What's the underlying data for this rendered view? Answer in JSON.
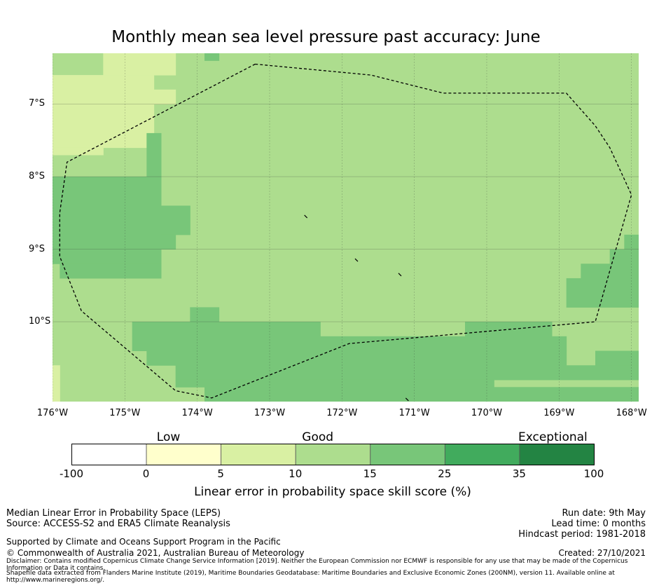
{
  "title": "Monthly mean sea level pressure past accuracy: June",
  "map": {
    "lon_range": [
      -176,
      -167.9
    ],
    "lat_range": [
      -11.1,
      -6.3
    ],
    "lat_ticks": [
      {
        "value": -7,
        "label": "7°S"
      },
      {
        "value": -8,
        "label": "8°S"
      },
      {
        "value": -9,
        "label": "9°S"
      },
      {
        "value": -10,
        "label": "10°S"
      }
    ],
    "lon_ticks": [
      {
        "value": -176,
        "label": "176°W"
      },
      {
        "value": -175,
        "label": "175°W"
      },
      {
        "value": -174,
        "label": "174°W"
      },
      {
        "value": -173,
        "label": "173°W"
      },
      {
        "value": -172,
        "label": "172°W"
      },
      {
        "value": -171,
        "label": "171°W"
      },
      {
        "value": -170,
        "label": "170°W"
      },
      {
        "value": -169,
        "label": "169°W"
      },
      {
        "value": -168,
        "label": "168°W"
      }
    ],
    "base_category": "10-15",
    "regions": [
      {
        "cat": "5-10",
        "lon": [
          -176.0,
          -174.6
        ],
        "lat": [
          -6.6,
          -7.6
        ]
      },
      {
        "cat": "5-10",
        "lon": [
          -174.6,
          -174.3
        ],
        "lat": [
          -6.8,
          -7.0
        ]
      },
      {
        "cat": "5-10",
        "lon": [
          -175.3,
          -174.3
        ],
        "lat": [
          -6.3,
          -6.6
        ]
      },
      {
        "cat": "5-10",
        "lon": [
          -176.0,
          -175.3
        ],
        "lat": [
          -7.6,
          -7.7
        ]
      },
      {
        "cat": "15-25",
        "lon": [
          -173.9,
          -173.7
        ],
        "lat": [
          -6.3,
          -6.4
        ]
      },
      {
        "cat": "15-25",
        "lon": [
          -174.7,
          -174.5
        ],
        "lat": [
          -7.4,
          -8.0
        ]
      },
      {
        "cat": "15-25",
        "lon": [
          -176.0,
          -174.5
        ],
        "lat": [
          -8.0,
          -9.2
        ]
      },
      {
        "cat": "15-25",
        "lon": [
          -174.5,
          -174.1
        ],
        "lat": [
          -8.4,
          -8.8
        ]
      },
      {
        "cat": "15-25",
        "lon": [
          -174.5,
          -174.3
        ],
        "lat": [
          -8.8,
          -9.0
        ]
      },
      {
        "cat": "15-25",
        "lon": [
          -175.9,
          -174.5
        ],
        "lat": [
          -9.2,
          -9.4
        ]
      },
      {
        "cat": "15-25",
        "lon": [
          -174.1,
          -173.7
        ],
        "lat": [
          -9.8,
          -10.0
        ]
      },
      {
        "cat": "15-25",
        "lon": [
          -174.9,
          -172.3
        ],
        "lat": [
          -10.0,
          -10.2
        ]
      },
      {
        "cat": "15-25",
        "lon": [
          -170.3,
          -169.1
        ],
        "lat": [
          -10.0,
          -10.2
        ]
      },
      {
        "cat": "15-25",
        "lon": [
          -174.9,
          -168.9
        ],
        "lat": [
          -10.2,
          -10.4
        ]
      },
      {
        "cat": "15-25",
        "lon": [
          -174.7,
          -168.9
        ],
        "lat": [
          -10.4,
          -10.6
        ]
      },
      {
        "cat": "15-25",
        "lon": [
          -174.3,
          -167.9
        ],
        "lat": [
          -10.6,
          -10.8
        ]
      },
      {
        "cat": "15-25",
        "lon": [
          -174.3,
          -169.9
        ],
        "lat": [
          -10.8,
          -10.9
        ]
      },
      {
        "cat": "15-25",
        "lon": [
          -173.9,
          -167.9
        ],
        "lat": [
          -10.9,
          -11.1
        ]
      },
      {
        "cat": "15-25",
        "lon": [
          -168.5,
          -167.9
        ],
        "lat": [
          -10.4,
          -10.6
        ]
      },
      {
        "cat": "15-25",
        "lon": [
          -168.9,
          -167.9
        ],
        "lat": [
          -9.4,
          -9.8
        ]
      },
      {
        "cat": "15-25",
        "lon": [
          -168.7,
          -167.9
        ],
        "lat": [
          -9.2,
          -9.4
        ]
      },
      {
        "cat": "15-25",
        "lon": [
          -168.3,
          -167.9
        ],
        "lat": [
          -9.0,
          -9.2
        ]
      },
      {
        "cat": "15-25",
        "lon": [
          -168.1,
          -167.9
        ],
        "lat": [
          -8.8,
          -9.0
        ]
      },
      {
        "cat": "5-10",
        "lon": [
          -176.0,
          -175.9
        ],
        "lat": [
          -10.6,
          -11.1
        ]
      }
    ],
    "eez_boundary": [
      [
        -173.2,
        -6.45
      ],
      [
        -171.6,
        -6.6
      ],
      [
        -170.6,
        -6.85
      ],
      [
        -168.9,
        -6.85
      ],
      [
        -168.5,
        -7.3
      ],
      [
        -168.3,
        -7.6
      ],
      [
        -168.0,
        -8.25
      ],
      [
        -168.5,
        -10.0
      ],
      [
        -171.9,
        -10.3
      ],
      [
        -173.8,
        -11.05
      ],
      [
        -174.3,
        -10.95
      ],
      [
        -175.6,
        -9.85
      ],
      [
        -175.9,
        -9.1
      ],
      [
        -175.9,
        -8.5
      ],
      [
        -175.8,
        -7.8
      ],
      [
        -173.2,
        -6.45
      ]
    ],
    "islands": [
      {
        "lon": -172.5,
        "lat": -8.55
      },
      {
        "lon": -171.8,
        "lat": -9.15
      },
      {
        "lon": -171.2,
        "lat": -9.35
      },
      {
        "lon": -171.1,
        "lat": -11.07
      }
    ]
  },
  "colorbar": {
    "bins": [
      {
        "id": "-100-0",
        "color": "#ffffff"
      },
      {
        "id": "0-5",
        "color": "#ffffcc"
      },
      {
        "id": "5-10",
        "color": "#d9f0a3"
      },
      {
        "id": "10-15",
        "color": "#addd8e"
      },
      {
        "id": "15-25",
        "color": "#78c679"
      },
      {
        "id": "25-35",
        "color": "#41ab5d"
      },
      {
        "id": "35-100",
        "color": "#238443"
      }
    ],
    "tick_labels": [
      "-100",
      "0",
      "5",
      "10",
      "15",
      "25",
      "35",
      "100"
    ],
    "categories": [
      {
        "label": "Low",
        "center_bin": 1.3
      },
      {
        "label": "Good",
        "center_bin": 3.3
      },
      {
        "label": "Exceptional",
        "center_bin": 6.45
      }
    ],
    "title": "Linear error in probability space skill score (%)"
  },
  "footer": {
    "left_line1": "Median Linear Error in Probability Space (LEPS)",
    "left_line2": "Source: ACCESS-S2 and ERA5 Climate Reanalysis",
    "support": "Supported by Climate and Oceans Support Program in the Pacific",
    "copyright": "© Commonwealth of Australia 2021, Australian Bureau of Meteorology",
    "run_date": "Run date: 9th May",
    "lead_time": "Lead time: 0 months",
    "hindcast": "Hindcast period: 1981-2018",
    "created": "Created: 27/10/2021",
    "disclaimer": "Disclaimer: Contains modified Copernicus Climate Change Service Information [2019]. Neither the European Commission nor ECMWF is responsible for any use that may be made of the Copernicus Information or Data it contains.",
    "shapefile": "Shapefile data extracted from Flanders Marine Institute (2019), Maritime Boundaries Geodatabase: Maritime Boundaries and Exclusive Economic Zones (200NM), version 11. Available online at http://www.marineregions.org/."
  }
}
